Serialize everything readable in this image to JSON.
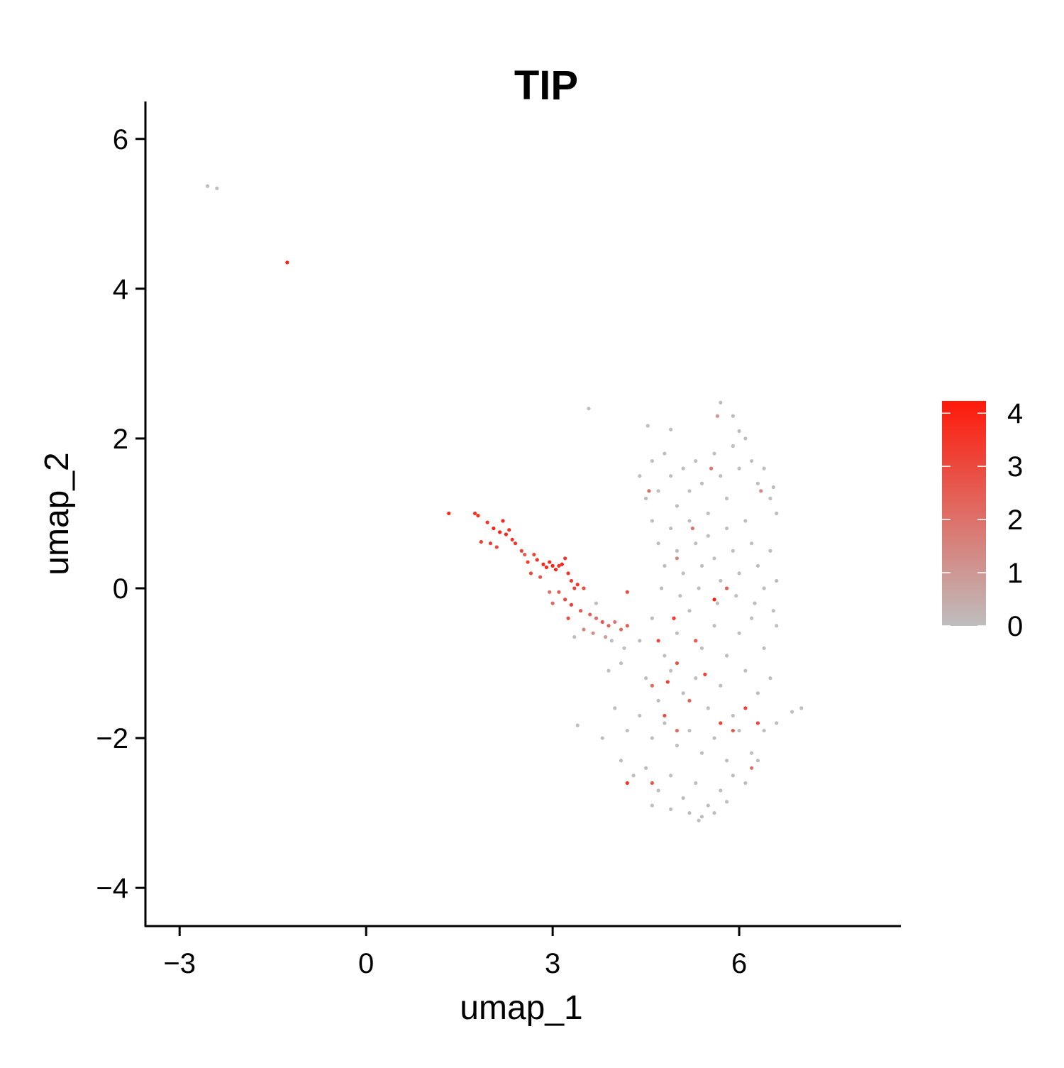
{
  "chart_data": {
    "type": "scatter",
    "title": "TIP",
    "x_label": "umap_1",
    "y_label": "umap_2",
    "xlim": [
      -3.55,
      8.6
    ],
    "ylim": [
      -4.51,
      6.5
    ],
    "xticks": [
      {
        "value": -3,
        "label": "−3"
      },
      0,
      3,
      6
    ],
    "yticks": [
      {
        "value": -4,
        "label": "−4"
      },
      {
        "value": -2,
        "label": "−2"
      },
      0,
      2,
      4,
      6
    ],
    "grid": false,
    "color_low": "#bebebe",
    "color_high": "#ff1a0a",
    "clim": [
      0,
      4.23
    ],
    "cticks": [
      0,
      1,
      2,
      3,
      4
    ],
    "x": [
      -2.55,
      -2.4,
      -1.27,
      3.58,
      4.53,
      4.9,
      5.7,
      5.65,
      5.9,
      6.0,
      7.0,
      6.85,
      3.4,
      1.33,
      1.75,
      1.8,
      1.95,
      2.05,
      2.15,
      2.2,
      2.25,
      2.3,
      2.35,
      2.4,
      1.85,
      2.0,
      2.1,
      2.5,
      2.55,
      2.6,
      2.7,
      2.75,
      2.85,
      2.9,
      2.95,
      3.0,
      3.05,
      3.1,
      3.15,
      3.2,
      3.25,
      2.65,
      2.8,
      3.3,
      3.35,
      3.4,
      3.5,
      3.1,
      2.95,
      3.2,
      3.3,
      3.45,
      3.0,
      3.6,
      3.7,
      3.8,
      3.9,
      4.0,
      4.1,
      4.2,
      3.25,
      3.5,
      3.65,
      3.85,
      3.35,
      3.7,
      3.95,
      4.15,
      3.9,
      4.2,
      4.1,
      4.4,
      4.5,
      4.6,
      4.7,
      4.8,
      4.9,
      5.0,
      5.1,
      5.2,
      5.3,
      5.4,
      5.5,
      5.6,
      5.7,
      5.8,
      5.9,
      6.0,
      6.1,
      6.2,
      6.3,
      6.4,
      6.5,
      6.6,
      6.55,
      4.6,
      4.7,
      4.8,
      4.9,
      5.0,
      5.1,
      5.2,
      5.3,
      5.4,
      5.5,
      5.6,
      5.7,
      5.8,
      5.9,
      6.0,
      6.1,
      6.2,
      6.3,
      6.4,
      6.5,
      6.6,
      4.75,
      5.05,
      5.35,
      5.65,
      5.95,
      6.25,
      6.55,
      5.8,
      5.6,
      5.25,
      4.55,
      5.55,
      6.35,
      5.0,
      4.4,
      4.6,
      4.8,
      5.0,
      5.2,
      5.4,
      5.6,
      5.8,
      6.0,
      6.2,
      6.4,
      6.6,
      4.5,
      4.7,
      4.9,
      5.1,
      5.3,
      5.5,
      5.7,
      5.9,
      6.1,
      6.3,
      6.5,
      4.0,
      4.2,
      4.4,
      4.6,
      4.8,
      5.0,
      5.2,
      5.4,
      5.6,
      5.8,
      6.0,
      6.2,
      6.4,
      6.6,
      3.8,
      4.1,
      4.3,
      4.5,
      4.7,
      4.9,
      5.1,
      5.3,
      5.5,
      5.7,
      5.9,
      6.1,
      6.3,
      4.9,
      5.2,
      5.4,
      5.6,
      5.8,
      4.6,
      5.35,
      4.7,
      4.95,
      5.3,
      4.6,
      5.0,
      4.8,
      5.2,
      5.7,
      6.1,
      6.3,
      5.9,
      4.2,
      4.6,
      5.0,
      6.2,
      4.85,
      5.45
    ],
    "y": [
      5.37,
      5.34,
      4.35,
      2.4,
      2.17,
      2.12,
      2.48,
      2.3,
      2.3,
      2.1,
      -1.6,
      -1.65,
      -1.83,
      1.0,
      1.0,
      0.97,
      0.88,
      0.8,
      0.75,
      0.9,
      0.72,
      0.78,
      0.65,
      0.6,
      0.62,
      0.6,
      0.55,
      0.5,
      0.45,
      0.35,
      0.45,
      0.38,
      0.32,
      0.28,
      0.35,
      0.3,
      0.25,
      0.3,
      0.32,
      0.4,
      0.2,
      0.2,
      0.15,
      0.1,
      0.0,
      0.05,
      0.0,
      -0.05,
      -0.05,
      -0.15,
      -0.22,
      -0.3,
      -0.2,
      -0.35,
      -0.4,
      -0.45,
      -0.5,
      -0.45,
      -0.55,
      -0.5,
      -0.4,
      -0.55,
      -0.6,
      -0.65,
      -0.65,
      -0.2,
      -0.7,
      -0.8,
      -1.1,
      -0.05,
      -1.0,
      1.5,
      1.2,
      1.7,
      1.3,
      1.8,
      1.5,
      1.1,
      1.6,
      1.3,
      1.7,
      1.4,
      1.0,
      1.8,
      1.5,
      1.2,
      1.9,
      1.6,
      2.0,
      1.7,
      1.4,
      1.6,
      1.2,
      1.0,
      1.35,
      0.9,
      0.6,
      0.3,
      0.8,
      0.5,
      0.2,
      0.9,
      0.6,
      0.3,
      0.7,
      0.4,
      0.1,
      0.8,
      0.5,
      0.2,
      0.9,
      0.6,
      0.3,
      0.0,
      0.5,
      0.1,
      0.0,
      -0.1,
      0.0,
      -0.2,
      -0.1,
      -0.2,
      -0.3,
      0.0,
      -0.15,
      0.8,
      1.3,
      1.6,
      1.3,
      0.4,
      -0.7,
      -0.4,
      -0.9,
      -0.6,
      -0.3,
      -0.8,
      -0.5,
      -0.9,
      -0.6,
      -0.4,
      -0.8,
      -0.5,
      -1.2,
      -1.5,
      -1.1,
      -1.4,
      -1.2,
      -1.6,
      -1.3,
      -1.7,
      -1.1,
      -1.4,
      -1.2,
      -1.6,
      -1.9,
      -1.7,
      -2.0,
      -1.8,
      -2.1,
      -1.9,
      -2.2,
      -2.0,
      -2.3,
      -1.9,
      -2.2,
      -1.9,
      -1.8,
      -2.0,
      -2.3,
      -2.5,
      -2.4,
      -2.7,
      -2.5,
      -2.8,
      -2.6,
      -2.9,
      -2.7,
      -2.5,
      -2.6,
      -2.3,
      -2.95,
      -3.0,
      -3.05,
      -3.0,
      -2.85,
      -2.9,
      -3.1,
      -0.7,
      -0.4,
      -0.7,
      -1.3,
      -1.0,
      -1.7,
      -1.5,
      -1.8,
      -1.6,
      -1.8,
      -1.9,
      -2.6,
      -2.6,
      -1.9,
      -2.4,
      -1.25,
      -1.15
    ],
    "values": [
      0,
      0,
      4.0,
      0,
      0,
      0,
      0,
      1.0,
      0,
      0,
      0,
      0,
      0,
      3.8,
      3.7,
      3.6,
      3.5,
      4.0,
      4.1,
      3.9,
      4.0,
      3.8,
      3.6,
      3.5,
      3.4,
      3.3,
      3.0,
      3.2,
      2.6,
      3.3,
      3.0,
      3.6,
      3.9,
      4.0,
      3.8,
      4.1,
      3.9,
      3.7,
      4.0,
      3.5,
      3.6,
      3.1,
      2.8,
      3.4,
      3.2,
      3.5,
      3.0,
      2.5,
      2.0,
      3.1,
      3.3,
      2.7,
      2.2,
      2.4,
      2.0,
      2.6,
      2.3,
      1.8,
      2.2,
      2.5,
      2.8,
      1.5,
      1.2,
      0.8,
      0,
      0,
      0,
      0,
      0,
      3.0,
      0,
      0,
      0,
      0,
      0,
      0,
      0,
      0,
      0,
      0,
      0,
      0,
      0,
      0,
      0,
      0,
      0,
      0,
      0,
      0,
      0,
      0,
      0,
      0,
      0,
      0,
      0,
      0,
      0,
      0,
      0,
      0,
      0,
      0,
      0,
      0,
      0,
      0,
      0,
      0,
      0,
      0,
      0,
      0,
      0,
      0,
      0,
      0,
      0,
      0,
      0,
      0,
      0,
      2.5,
      4.2,
      2.0,
      2.2,
      1.8,
      1.5,
      1.5,
      0,
      0,
      0,
      0,
      0,
      0,
      0,
      0,
      0,
      0,
      0,
      0,
      0,
      0,
      0,
      0,
      0,
      0,
      0,
      0,
      0,
      0,
      0,
      0,
      0,
      0,
      0,
      0,
      0,
      0,
      0,
      0,
      0,
      0,
      0,
      0,
      0,
      0,
      0,
      0,
      0,
      0,
      0,
      0,
      0,
      0,
      0,
      0,
      0,
      0,
      0,
      0,
      0,
      0,
      0,
      0,
      0,
      3.0,
      3.5,
      2.7,
      2.2,
      2.8,
      3.0,
      2.4,
      3.1,
      3.3,
      3.0,
      2.6,
      3.6,
      2.8,
      2.2,
      2.0,
      3.4,
      3.2
    ]
  }
}
